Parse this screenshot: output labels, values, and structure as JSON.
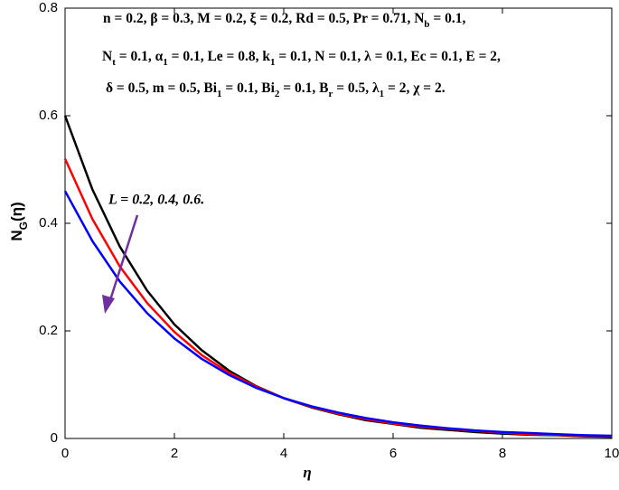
{
  "chart_data": {
    "type": "line",
    "x_label": "η",
    "y_label": [
      "N",
      "G",
      "(η)"
    ],
    "annotation_lines": [
      [
        "n = 0.2, β = 0.3, M = 0.2, ξ = 0.2, Rd = 0.5, Pr = 0.71, N",
        "b",
        " = 0.1,"
      ],
      [
        "N",
        "t",
        " = 0.1, α",
        "1",
        " = 0.1, Le = 0.8, k",
        "1",
        " = 0.1, N = 0.1, λ = 0.1, Ec = 0.1, E = 2,"
      ],
      [
        "δ = 0.5, m = 0.5, Bi",
        "1",
        " = 0.1, Bi",
        "2",
        " = 0.1, B",
        "r",
        " = 0.5, λ",
        "1",
        " = 2, χ = 2."
      ]
    ],
    "arrow_label": "L = 0.2, 0.4, 0.6.",
    "arrow_color": "#7030a0",
    "x": [
      0,
      0.5,
      1,
      1.5,
      2,
      2.5,
      3,
      3.5,
      4,
      4.5,
      5,
      5.5,
      6,
      6.5,
      7,
      7.5,
      8,
      8.5,
      9,
      9.5,
      10
    ],
    "series": [
      {
        "color": "#000000",
        "values": [
          0.6,
          0.463,
          0.357,
          0.275,
          0.212,
          0.164,
          0.126,
          0.097,
          0.075,
          0.058,
          0.045,
          0.034,
          0.027,
          0.02,
          0.016,
          0.012,
          0.009,
          0.007,
          0.006,
          0.004,
          0.003
        ]
      },
      {
        "color": "#ff0000",
        "values": [
          0.52,
          0.408,
          0.32,
          0.252,
          0.198,
          0.155,
          0.122,
          0.096,
          0.075,
          0.059,
          0.046,
          0.036,
          0.028,
          0.022,
          0.018,
          0.014,
          0.011,
          0.008,
          0.007,
          0.005,
          0.004
        ]
      },
      {
        "color": "#0000ff",
        "values": [
          0.46,
          0.367,
          0.292,
          0.233,
          0.186,
          0.148,
          0.118,
          0.094,
          0.075,
          0.06,
          0.048,
          0.038,
          0.03,
          0.024,
          0.019,
          0.015,
          0.012,
          0.01,
          0.008,
          0.006,
          0.005
        ]
      }
    ],
    "xlim": [
      0,
      10
    ],
    "ylim": [
      0,
      0.8
    ],
    "xticks": [
      0,
      2,
      4,
      6,
      8,
      10
    ],
    "yticks": [
      0,
      0.2,
      0.4,
      0.6,
      0.8
    ],
    "grid": false
  }
}
